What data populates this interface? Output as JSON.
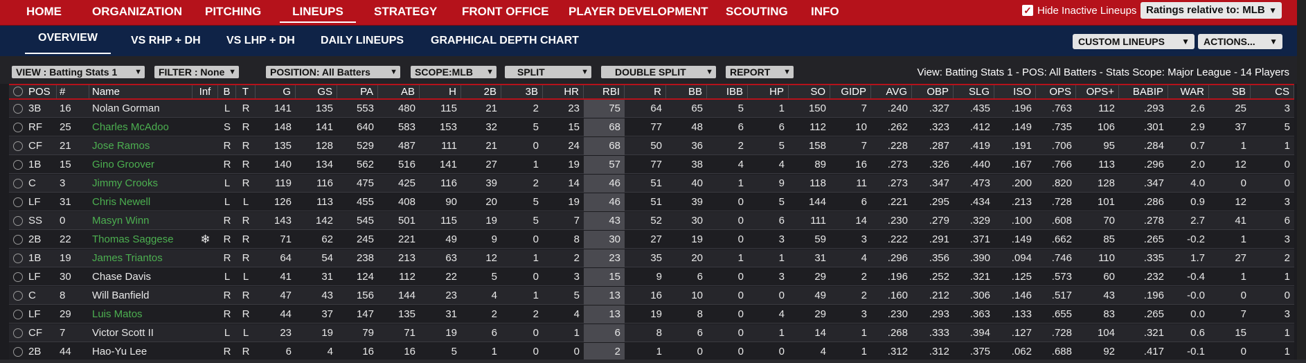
{
  "topnav": {
    "items": [
      "HOME",
      "ORGANIZATION",
      "PITCHING",
      "LINEUPS",
      "STRATEGY",
      "FRONT OFFICE",
      "PLAYER DEVELOPMENT",
      "SCOUTING",
      "INFO"
    ],
    "active": "LINEUPS",
    "hide_inactive_label": "Hide Inactive Lineups",
    "hide_inactive_checked": true,
    "ratings_label": "Ratings relative to: MLB"
  },
  "subnav": {
    "items": [
      "OVERVIEW",
      "VS RHP + DH",
      "VS LHP + DH",
      "DAILY LINEUPS",
      "GRAPHICAL DEPTH CHART"
    ],
    "active": "OVERVIEW",
    "custom_lineups_label": "CUSTOM LINEUPS",
    "actions_label": "ACTIONS..."
  },
  "filters": {
    "view": "VIEW : Batting Stats 1",
    "filter": "FILTER : None",
    "position": "POSITION: All Batters",
    "scope": "SCOPE:MLB",
    "split": "SPLIT",
    "double_split": "DOUBLE SPLIT",
    "report": "REPORT",
    "summary": "View: Batting Stats 1 - POS: All Batters - Stats Scope: Major League - 14 Players"
  },
  "table": {
    "columns": [
      "POS",
      "#",
      "Name",
      "Inf",
      "B",
      "T",
      "G",
      "GS",
      "PA",
      "AB",
      "H",
      "2B",
      "3B",
      "HR",
      "RBI",
      "R",
      "BB",
      "IBB",
      "HP",
      "SO",
      "GIDP",
      "AVG",
      "OBP",
      "SLG",
      "ISO",
      "OPS",
      "OPS+",
      "BABIP",
      "WAR",
      "SB",
      "CS"
    ],
    "rows": [
      {
        "pos": "3B",
        "num": "16",
        "name": "Nolan Gorman",
        "green": false,
        "inf": "",
        "b": "L",
        "t": "R",
        "g": "141",
        "gs": "135",
        "pa": "553",
        "ab": "480",
        "h": "115",
        "d": "21",
        "tr": "2",
        "hr": "23",
        "rbi": "75",
        "r": "64",
        "bb": "65",
        "ibb": "5",
        "hp": "1",
        "so": "150",
        "gidp": "7",
        "avg": ".240",
        "obp": ".327",
        "slg": ".435",
        "iso": ".196",
        "ops": ".763",
        "opsp": "112",
        "babip": ".293",
        "war": "2.6",
        "sb": "25",
        "cs": "3"
      },
      {
        "pos": "RF",
        "num": "25",
        "name": "Charles McAdoo",
        "green": true,
        "inf": "",
        "b": "S",
        "t": "R",
        "g": "148",
        "gs": "141",
        "pa": "640",
        "ab": "583",
        "h": "153",
        "d": "32",
        "tr": "5",
        "hr": "15",
        "rbi": "68",
        "r": "77",
        "bb": "48",
        "ibb": "6",
        "hp": "6",
        "so": "112",
        "gidp": "10",
        "avg": ".262",
        "obp": ".323",
        "slg": ".412",
        "iso": ".149",
        "ops": ".735",
        "opsp": "106",
        "babip": ".301",
        "war": "2.9",
        "sb": "37",
        "cs": "5"
      },
      {
        "pos": "CF",
        "num": "21",
        "name": "Jose Ramos",
        "green": true,
        "inf": "",
        "b": "R",
        "t": "R",
        "g": "135",
        "gs": "128",
        "pa": "529",
        "ab": "487",
        "h": "111",
        "d": "21",
        "tr": "0",
        "hr": "24",
        "rbi": "68",
        "r": "50",
        "bb": "36",
        "ibb": "2",
        "hp": "5",
        "so": "158",
        "gidp": "7",
        "avg": ".228",
        "obp": ".287",
        "slg": ".419",
        "iso": ".191",
        "ops": ".706",
        "opsp": "95",
        "babip": ".284",
        "war": "0.7",
        "sb": "1",
        "cs": "1"
      },
      {
        "pos": "1B",
        "num": "15",
        "name": "Gino Groover",
        "green": true,
        "inf": "",
        "b": "R",
        "t": "R",
        "g": "140",
        "gs": "134",
        "pa": "562",
        "ab": "516",
        "h": "141",
        "d": "27",
        "tr": "1",
        "hr": "19",
        "rbi": "57",
        "r": "77",
        "bb": "38",
        "ibb": "4",
        "hp": "4",
        "so": "89",
        "gidp": "16",
        "avg": ".273",
        "obp": ".326",
        "slg": ".440",
        "iso": ".167",
        "ops": ".766",
        "opsp": "113",
        "babip": ".296",
        "war": "2.0",
        "sb": "12",
        "cs": "0"
      },
      {
        "pos": "C",
        "num": "3",
        "name": "Jimmy Crooks",
        "green": true,
        "inf": "",
        "b": "L",
        "t": "R",
        "g": "119",
        "gs": "116",
        "pa": "475",
        "ab": "425",
        "h": "116",
        "d": "39",
        "tr": "2",
        "hr": "14",
        "rbi": "46",
        "r": "51",
        "bb": "40",
        "ibb": "1",
        "hp": "9",
        "so": "118",
        "gidp": "11",
        "avg": ".273",
        "obp": ".347",
        "slg": ".473",
        "iso": ".200",
        "ops": ".820",
        "opsp": "128",
        "babip": ".347",
        "war": "4.0",
        "sb": "0",
        "cs": "0"
      },
      {
        "pos": "LF",
        "num": "31",
        "name": "Chris Newell",
        "green": true,
        "inf": "",
        "b": "L",
        "t": "L",
        "g": "126",
        "gs": "113",
        "pa": "455",
        "ab": "408",
        "h": "90",
        "d": "20",
        "tr": "5",
        "hr": "19",
        "rbi": "46",
        "r": "51",
        "bb": "39",
        "ibb": "0",
        "hp": "5",
        "so": "144",
        "gidp": "6",
        "avg": ".221",
        "obp": ".295",
        "slg": ".434",
        "iso": ".213",
        "ops": ".728",
        "opsp": "101",
        "babip": ".286",
        "war": "0.9",
        "sb": "12",
        "cs": "3"
      },
      {
        "pos": "SS",
        "num": "0",
        "name": "Masyn Winn",
        "green": true,
        "inf": "",
        "b": "R",
        "t": "R",
        "g": "143",
        "gs": "142",
        "pa": "545",
        "ab": "501",
        "h": "115",
        "d": "19",
        "tr": "5",
        "hr": "7",
        "rbi": "43",
        "r": "52",
        "bb": "30",
        "ibb": "0",
        "hp": "6",
        "so": "111",
        "gidp": "14",
        "avg": ".230",
        "obp": ".279",
        "slg": ".329",
        "iso": ".100",
        "ops": ".608",
        "opsp": "70",
        "babip": ".278",
        "war": "2.7",
        "sb": "41",
        "cs": "6"
      },
      {
        "pos": "2B",
        "num": "22",
        "name": "Thomas Saggese",
        "green": true,
        "inf": "❄",
        "b": "R",
        "t": "R",
        "g": "71",
        "gs": "62",
        "pa": "245",
        "ab": "221",
        "h": "49",
        "d": "9",
        "tr": "0",
        "hr": "8",
        "rbi": "30",
        "r": "27",
        "bb": "19",
        "ibb": "0",
        "hp": "3",
        "so": "59",
        "gidp": "3",
        "avg": ".222",
        "obp": ".291",
        "slg": ".371",
        "iso": ".149",
        "ops": ".662",
        "opsp": "85",
        "babip": ".265",
        "war": "-0.2",
        "sb": "1",
        "cs": "3"
      },
      {
        "pos": "1B",
        "num": "19",
        "name": "James Triantos",
        "green": true,
        "inf": "",
        "b": "R",
        "t": "R",
        "g": "64",
        "gs": "54",
        "pa": "238",
        "ab": "213",
        "h": "63",
        "d": "12",
        "tr": "1",
        "hr": "2",
        "rbi": "23",
        "r": "35",
        "bb": "20",
        "ibb": "1",
        "hp": "1",
        "so": "31",
        "gidp": "4",
        "avg": ".296",
        "obp": ".356",
        "slg": ".390",
        "iso": ".094",
        "ops": ".746",
        "opsp": "110",
        "babip": ".335",
        "war": "1.7",
        "sb": "27",
        "cs": "2"
      },
      {
        "pos": "LF",
        "num": "30",
        "name": "Chase Davis",
        "green": false,
        "inf": "",
        "b": "L",
        "t": "L",
        "g": "41",
        "gs": "31",
        "pa": "124",
        "ab": "112",
        "h": "22",
        "d": "5",
        "tr": "0",
        "hr": "3",
        "rbi": "15",
        "r": "9",
        "bb": "6",
        "ibb": "0",
        "hp": "3",
        "so": "29",
        "gidp": "2",
        "avg": ".196",
        "obp": ".252",
        "slg": ".321",
        "iso": ".125",
        "ops": ".573",
        "opsp": "60",
        "babip": ".232",
        "war": "-0.4",
        "sb": "1",
        "cs": "1"
      },
      {
        "pos": "C",
        "num": "8",
        "name": "Will Banfield",
        "green": false,
        "inf": "",
        "b": "R",
        "t": "R",
        "g": "47",
        "gs": "43",
        "pa": "156",
        "ab": "144",
        "h": "23",
        "d": "4",
        "tr": "1",
        "hr": "5",
        "rbi": "13",
        "r": "16",
        "bb": "10",
        "ibb": "0",
        "hp": "0",
        "so": "49",
        "gidp": "2",
        "avg": ".160",
        "obp": ".212",
        "slg": ".306",
        "iso": ".146",
        "ops": ".517",
        "opsp": "43",
        "babip": ".196",
        "war": "-0.0",
        "sb": "0",
        "cs": "0"
      },
      {
        "pos": "LF",
        "num": "29",
        "name": "Luis Matos",
        "green": true,
        "inf": "",
        "b": "R",
        "t": "R",
        "g": "44",
        "gs": "37",
        "pa": "147",
        "ab": "135",
        "h": "31",
        "d": "2",
        "tr": "2",
        "hr": "4",
        "rbi": "13",
        "r": "19",
        "bb": "8",
        "ibb": "0",
        "hp": "4",
        "so": "29",
        "gidp": "3",
        "avg": ".230",
        "obp": ".293",
        "slg": ".363",
        "iso": ".133",
        "ops": ".655",
        "opsp": "83",
        "babip": ".265",
        "war": "0.0",
        "sb": "7",
        "cs": "3"
      },
      {
        "pos": "CF",
        "num": "7",
        "name": "Victor Scott II",
        "green": false,
        "inf": "",
        "b": "L",
        "t": "L",
        "g": "23",
        "gs": "19",
        "pa": "79",
        "ab": "71",
        "h": "19",
        "d": "6",
        "tr": "0",
        "hr": "1",
        "rbi": "6",
        "r": "8",
        "bb": "6",
        "ibb": "0",
        "hp": "1",
        "so": "14",
        "gidp": "1",
        "avg": ".268",
        "obp": ".333",
        "slg": ".394",
        "iso": ".127",
        "ops": ".728",
        "opsp": "104",
        "babip": ".321",
        "war": "0.6",
        "sb": "15",
        "cs": "1"
      },
      {
        "pos": "2B",
        "num": "44",
        "name": "Hao-Yu Lee",
        "green": false,
        "inf": "",
        "b": "R",
        "t": "R",
        "g": "6",
        "gs": "4",
        "pa": "16",
        "ab": "16",
        "h": "5",
        "d": "1",
        "tr": "0",
        "hr": "0",
        "rbi": "2",
        "r": "1",
        "bb": "0",
        "ibb": "0",
        "hp": "0",
        "so": "4",
        "gidp": "1",
        "avg": ".312",
        "obp": ".312",
        "slg": ".375",
        "iso": ".062",
        "ops": ".688",
        "opsp": "92",
        "babip": ".417",
        "war": "-0.1",
        "sb": "0",
        "cs": "1"
      }
    ]
  },
  "colors": {
    "nav_red": "#b5121b",
    "subnav_navy": "#0f2347",
    "name_green": "#4caf50"
  }
}
